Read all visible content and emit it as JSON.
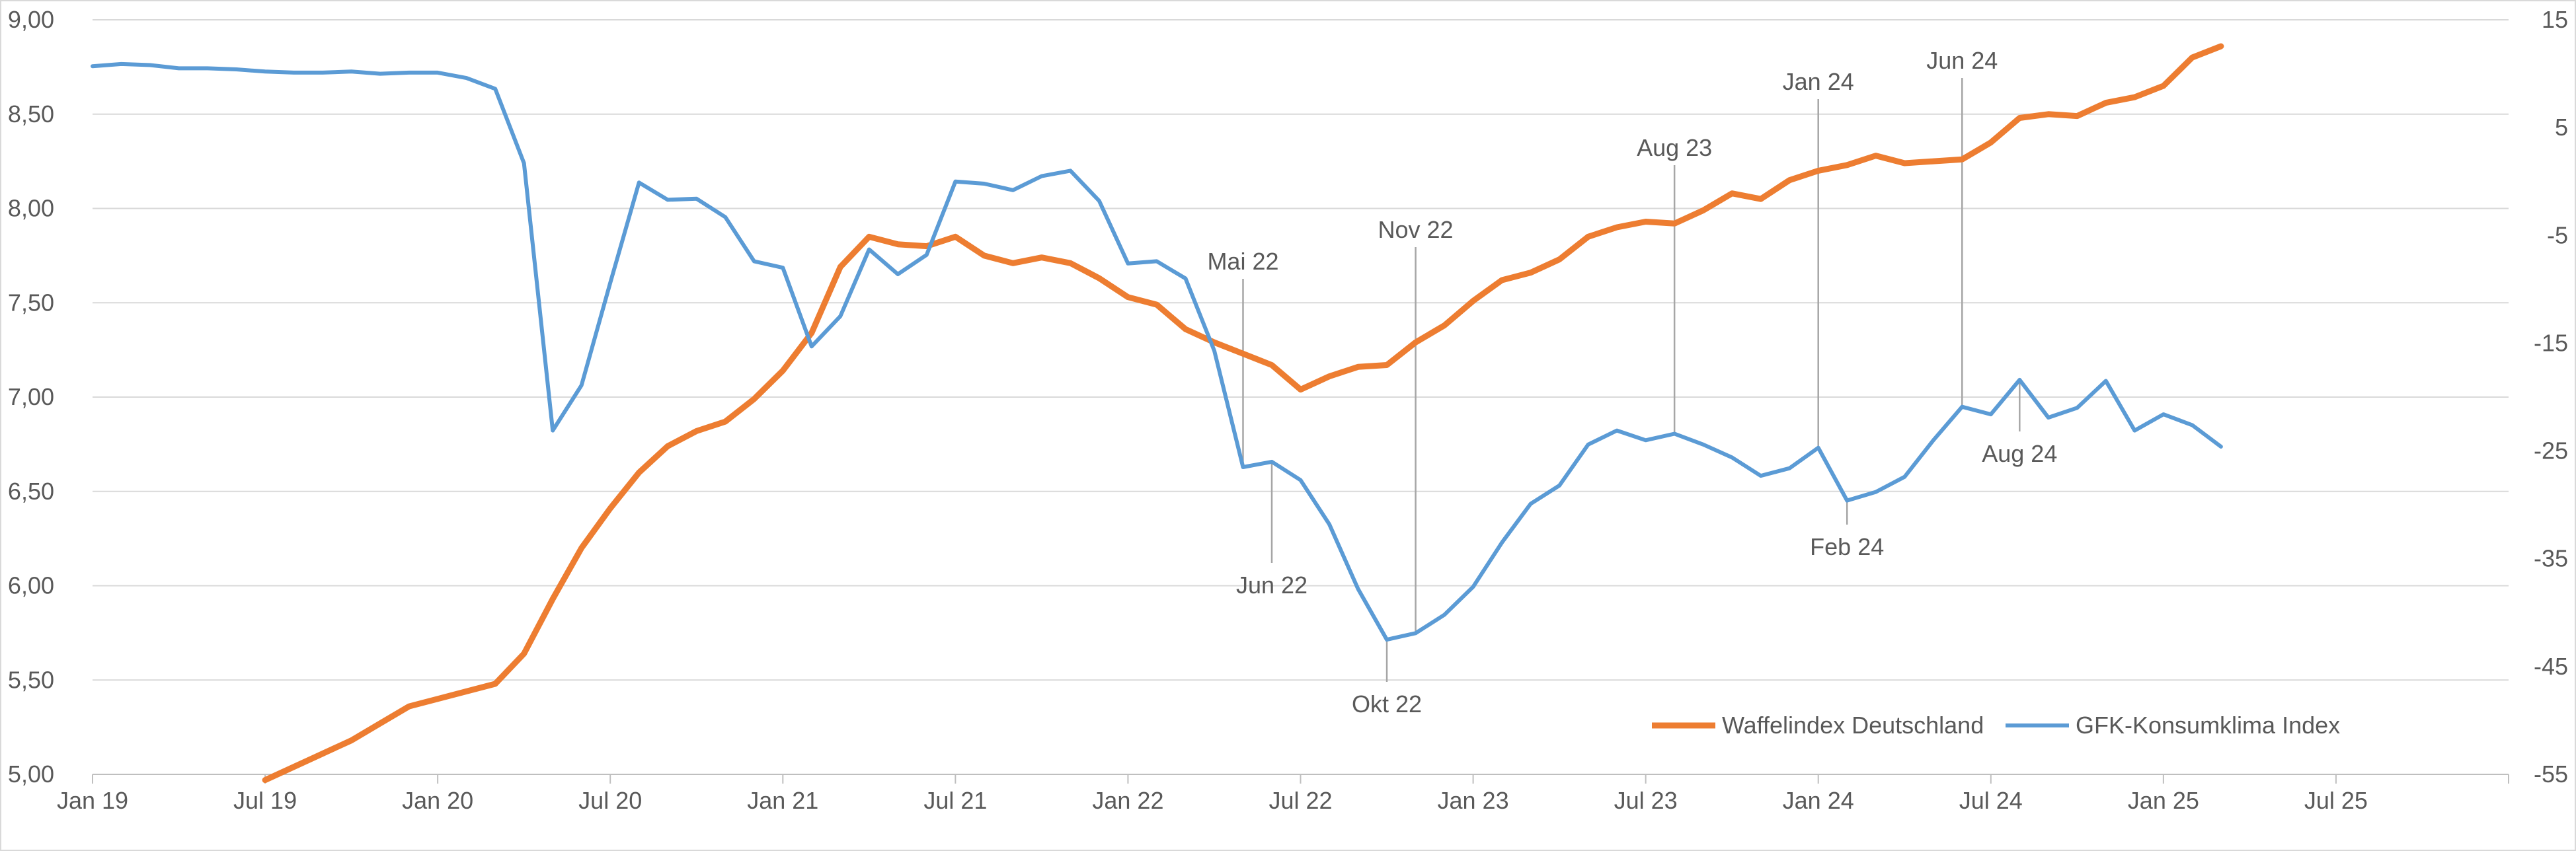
{
  "chart_data": {
    "type": "line",
    "title": "",
    "xlabel": "",
    "ylabel": "",
    "x_tick_labels": [
      "Jan 19",
      "Jul 19",
      "Jan 20",
      "Jul 20",
      "Jan 21",
      "Jul 21",
      "Jan 22",
      "Jul 22",
      "Jan 23",
      "Jul 23",
      "Jan 24",
      "Jul 24",
      "Jan 25",
      "Jul 25"
    ],
    "x_range": [
      "2019-01",
      "2025-12"
    ],
    "y_left": {
      "range": [
        5.0,
        9.0
      ],
      "ticks": [
        5.0,
        5.5,
        6.0,
        6.5,
        7.0,
        7.5,
        8.0,
        8.5,
        9.0
      ],
      "tick_labels": [
        "5,00",
        "5,50",
        "6,00",
        "6,50",
        "7,00",
        "7,50",
        "8,00",
        "8,50",
        "9,00"
      ]
    },
    "y_right": {
      "range": [
        -55,
        15
      ],
      "ticks": [
        -55,
        -45,
        -35,
        -25,
        -15,
        -5,
        5,
        15
      ],
      "tick_labels": [
        "-55",
        "-45",
        "-35",
        "-25",
        "-15",
        "-5",
        "5",
        "15"
      ]
    },
    "grid": true,
    "legend_position": "bottom-right",
    "series": [
      {
        "name": "Waffelindex Deutschland",
        "axis": "left",
        "color": "#ED7D31",
        "points": [
          [
            "2019-07",
            4.97
          ],
          [
            "2019-08",
            5.04
          ],
          [
            "2019-09",
            5.11
          ],
          [
            "2019-10",
            5.18
          ],
          [
            "2019-11",
            5.27
          ],
          [
            "2019-12",
            5.36
          ],
          [
            "2020-01",
            5.4
          ],
          [
            "2020-02",
            5.44
          ],
          [
            "2020-03",
            5.48
          ],
          [
            "2020-04",
            5.64
          ],
          [
            "2020-05",
            5.93
          ],
          [
            "2020-06",
            6.2
          ],
          [
            "2020-07",
            6.41
          ],
          [
            "2020-08",
            6.6
          ],
          [
            "2020-09",
            6.74
          ],
          [
            "2020-10",
            6.82
          ],
          [
            "2020-11",
            6.87
          ],
          [
            "2020-12",
            6.99
          ],
          [
            "2021-01",
            7.14
          ],
          [
            "2021-02",
            7.34
          ],
          [
            "2021-03",
            7.69
          ],
          [
            "2021-04",
            7.85
          ],
          [
            "2021-05",
            7.81
          ],
          [
            "2021-06",
            7.8
          ],
          [
            "2021-07",
            7.85
          ],
          [
            "2021-08",
            7.75
          ],
          [
            "2021-09",
            7.71
          ],
          [
            "2021-10",
            7.74
          ],
          [
            "2021-11",
            7.71
          ],
          [
            "2021-12",
            7.63
          ],
          [
            "2022-01",
            7.53
          ],
          [
            "2022-02",
            7.49
          ],
          [
            "2022-03",
            7.36
          ],
          [
            "2022-04",
            7.29
          ],
          [
            "2022-05",
            7.23
          ],
          [
            "2022-06",
            7.17
          ],
          [
            "2022-07",
            7.04
          ],
          [
            "2022-08",
            7.11
          ],
          [
            "2022-09",
            7.16
          ],
          [
            "2022-10",
            7.17
          ],
          [
            "2022-11",
            7.29
          ],
          [
            "2022-12",
            7.38
          ],
          [
            "2023-01",
            7.51
          ],
          [
            "2023-02",
            7.62
          ],
          [
            "2023-03",
            7.66
          ],
          [
            "2023-04",
            7.73
          ],
          [
            "2023-05",
            7.85
          ],
          [
            "2023-06",
            7.9
          ],
          [
            "2023-07",
            7.93
          ],
          [
            "2023-08",
            7.92
          ],
          [
            "2023-09",
            7.99
          ],
          [
            "2023-10",
            8.08
          ],
          [
            "2023-11",
            8.05
          ],
          [
            "2023-12",
            8.15
          ],
          [
            "2024-01",
            8.2
          ],
          [
            "2024-02",
            8.23
          ],
          [
            "2024-03",
            8.28
          ],
          [
            "2024-04",
            8.24
          ],
          [
            "2024-05",
            8.25
          ],
          [
            "2024-06",
            8.26
          ],
          [
            "2024-07",
            8.35
          ],
          [
            "2024-08",
            8.48
          ],
          [
            "2024-09",
            8.5
          ],
          [
            "2024-10",
            8.49
          ],
          [
            "2024-11",
            8.56
          ],
          [
            "2024-12",
            8.59
          ],
          [
            "2025-01",
            8.65
          ],
          [
            "2025-02",
            8.8
          ],
          [
            "2025-03",
            8.86
          ]
        ]
      },
      {
        "name": "GFK-Konsumklima Index",
        "axis": "right",
        "color": "#5B9BD5",
        "points": [
          [
            "2019-01",
            10.7
          ],
          [
            "2019-02",
            10.9
          ],
          [
            "2019-03",
            10.8
          ],
          [
            "2019-04",
            10.5
          ],
          [
            "2019-05",
            10.5
          ],
          [
            "2019-06",
            10.4
          ],
          [
            "2019-07",
            10.2
          ],
          [
            "2019-08",
            10.1
          ],
          [
            "2019-09",
            10.1
          ],
          [
            "2019-10",
            10.2
          ],
          [
            "2019-11",
            10.0
          ],
          [
            "2019-12",
            10.1
          ],
          [
            "2020-01",
            10.1
          ],
          [
            "2020-02",
            9.6
          ],
          [
            "2020-03",
            8.6
          ],
          [
            "2020-04",
            1.7
          ],
          [
            "2020-05",
            -23.1
          ],
          [
            "2020-06",
            -18.9
          ],
          [
            "2020-07",
            -9.4
          ],
          [
            "2020-08",
            -0.1
          ],
          [
            "2020-09",
            -1.7
          ],
          [
            "2020-10",
            -1.6
          ],
          [
            "2020-11",
            -3.3
          ],
          [
            "2020-12",
            -7.4
          ],
          [
            "2021-01",
            -8.0
          ],
          [
            "2021-02",
            -15.3
          ],
          [
            "2021-03",
            -12.5
          ],
          [
            "2021-04",
            -6.3
          ],
          [
            "2021-05",
            -8.6
          ],
          [
            "2021-06",
            -6.8
          ],
          [
            "2021-07",
            0.0
          ],
          [
            "2021-08",
            -0.2
          ],
          [
            "2021-09",
            -0.8
          ],
          [
            "2021-10",
            0.5
          ],
          [
            "2021-11",
            1.0
          ],
          [
            "2021-12",
            -1.8
          ],
          [
            "2022-01",
            -7.6
          ],
          [
            "2022-02",
            -7.4
          ],
          [
            "2022-03",
            -9.0
          ],
          [
            "2022-04",
            -15.7
          ],
          [
            "2022-05",
            -26.5
          ],
          [
            "2022-06",
            -26.0
          ],
          [
            "2022-07",
            -27.7
          ],
          [
            "2022-08",
            -31.8
          ],
          [
            "2022-09",
            -37.8
          ],
          [
            "2022-10",
            -42.5
          ],
          [
            "2022-11",
            -41.9
          ],
          [
            "2022-12",
            -40.2
          ],
          [
            "2023-01",
            -37.6
          ],
          [
            "2023-02",
            -33.5
          ],
          [
            "2023-03",
            -29.9
          ],
          [
            "2023-04",
            -28.2
          ],
          [
            "2023-05",
            -24.4
          ],
          [
            "2023-06",
            -23.1
          ],
          [
            "2023-07",
            -24.0
          ],
          [
            "2023-08",
            -23.4
          ],
          [
            "2023-09",
            -24.4
          ],
          [
            "2023-10",
            -25.6
          ],
          [
            "2023-11",
            -27.3
          ],
          [
            "2023-12",
            -26.6
          ],
          [
            "2024-01",
            -24.7
          ],
          [
            "2024-02",
            -29.6
          ],
          [
            "2024-03",
            -28.8
          ],
          [
            "2024-04",
            -27.4
          ],
          [
            "2024-05",
            -24.0
          ],
          [
            "2024-06",
            -20.9
          ],
          [
            "2024-07",
            -21.6
          ],
          [
            "2024-08",
            -18.4
          ],
          [
            "2024-09",
            -21.9
          ],
          [
            "2024-10",
            -21.0
          ],
          [
            "2024-11",
            -18.5
          ],
          [
            "2024-12",
            -23.1
          ],
          [
            "2025-01",
            -21.6
          ],
          [
            "2025-02",
            -22.6
          ],
          [
            "2025-03",
            -24.6
          ]
        ]
      }
    ],
    "annotations": [
      {
        "label": "Mai 22",
        "series": "GFK-Konsumklima Index",
        "x": "2022-05",
        "y": -26.5,
        "placement": "above"
      },
      {
        "label": "Jun 22",
        "series": "GFK-Konsumklima Index",
        "x": "2022-06",
        "y": -26.0,
        "placement": "below"
      },
      {
        "label": "Okt 22",
        "series": "GFK-Konsumklima Index",
        "x": "2022-10",
        "y": -42.5,
        "placement": "below"
      },
      {
        "label": "Nov 22",
        "series": "GFK-Konsumklima Index",
        "x": "2022-11",
        "y": -41.9,
        "placement": "above"
      },
      {
        "label": "Aug 23",
        "series": "GFK-Konsumklima Index",
        "x": "2023-08",
        "y": -23.4,
        "placement": "above"
      },
      {
        "label": "Jan 24",
        "series": "GFK-Konsumklima Index",
        "x": "2024-01",
        "y": -24.7,
        "placement": "above"
      },
      {
        "label": "Feb 24",
        "series": "GFK-Konsumklima Index",
        "x": "2024-02",
        "y": -29.6,
        "placement": "below"
      },
      {
        "label": "Jun 24",
        "series": "GFK-Konsumklima Index",
        "x": "2024-06",
        "y": -20.9,
        "placement": "above"
      },
      {
        "label": "Aug 24",
        "series": "GFK-Konsumklima Index",
        "x": "2024-08",
        "y": -18.4,
        "placement": "below"
      }
    ]
  }
}
